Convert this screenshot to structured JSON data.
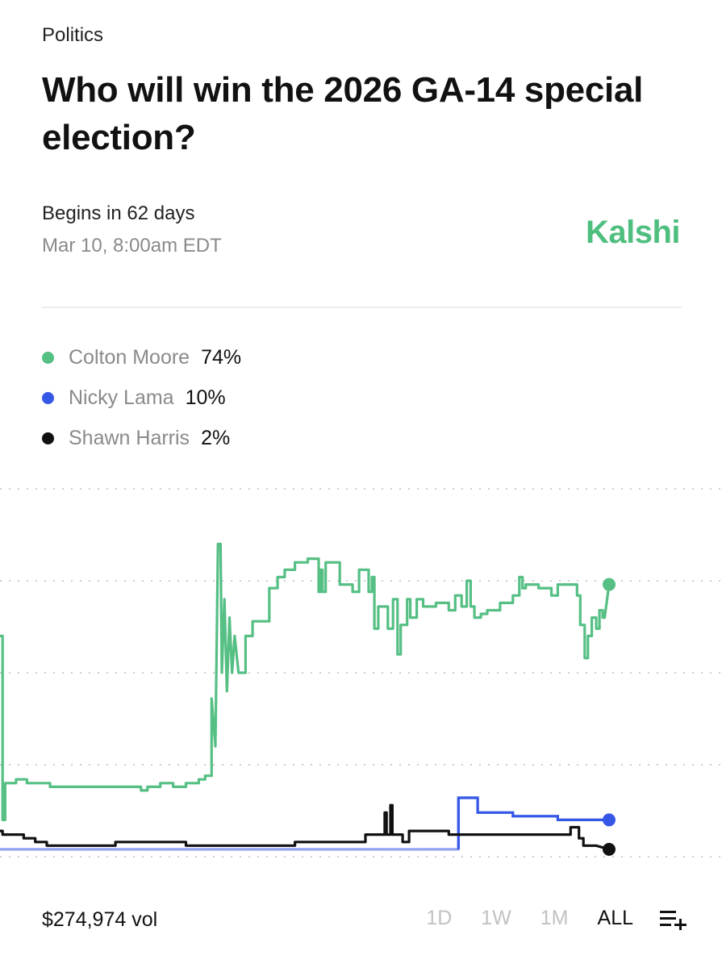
{
  "header": {
    "category": "Politics",
    "title": "Who will win the 2026 GA-14 special election?",
    "begins": "Begins in 62 days",
    "date": "Mar 10, 8:00am EDT",
    "brand": "Kalshi"
  },
  "colors": {
    "brand": "#4fbf7f",
    "moore": "#55bf84",
    "lama": "#3557e6",
    "harris": "#111111",
    "grid": "#cfcfcf"
  },
  "legend": [
    {
      "name": "Colton Moore",
      "value": "74%"
    },
    {
      "name": "Nicky Lama",
      "value": "10%"
    },
    {
      "name": "Shawn Harris",
      "value": "2%"
    }
  ],
  "footer": {
    "volume": "$274,974 vol",
    "ranges": [
      "1D",
      "1W",
      "1M",
      "ALL"
    ],
    "active_range": "ALL",
    "list_icon": "list-add-icon"
  },
  "chart_data": {
    "type": "line",
    "grid": "horizontal-dotted",
    "ylim": [
      0,
      100
    ],
    "xlim": [
      0,
      100
    ],
    "series": [
      {
        "name": "Colton Moore",
        "color": "#55bf84",
        "points": [
          [
            0,
            60
          ],
          [
            0.4,
            60
          ],
          [
            0.4,
            10
          ],
          [
            0.8,
            10
          ],
          [
            0.8,
            20
          ],
          [
            2.5,
            20
          ],
          [
            2.5,
            21
          ],
          [
            4.2,
            21
          ],
          [
            4.2,
            20
          ],
          [
            7.8,
            20
          ],
          [
            7.8,
            19
          ],
          [
            22,
            19
          ],
          [
            22,
            18
          ],
          [
            23,
            18
          ],
          [
            23,
            19
          ],
          [
            25,
            19
          ],
          [
            25,
            20
          ],
          [
            27,
            20
          ],
          [
            27,
            19
          ],
          [
            29,
            19
          ],
          [
            29,
            20
          ],
          [
            31,
            20
          ],
          [
            31,
            21
          ],
          [
            32,
            21
          ],
          [
            32,
            22
          ],
          [
            33,
            22
          ],
          [
            33,
            43
          ],
          [
            33.6,
            30
          ],
          [
            34,
            85
          ],
          [
            34.4,
            85
          ],
          [
            34.6,
            50
          ],
          [
            35,
            70
          ],
          [
            35.4,
            45
          ],
          [
            35.8,
            65
          ],
          [
            36.2,
            50
          ],
          [
            36.6,
            60
          ],
          [
            37.2,
            50
          ],
          [
            38.3,
            50
          ],
          [
            38.3,
            60
          ],
          [
            39.4,
            60
          ],
          [
            39.4,
            64
          ],
          [
            42,
            64
          ],
          [
            42,
            73
          ],
          [
            43.3,
            73
          ],
          [
            43.3,
            76
          ],
          [
            44.4,
            76
          ],
          [
            44.4,
            78
          ],
          [
            46,
            78
          ],
          [
            46,
            80
          ],
          [
            48,
            80
          ],
          [
            48,
            81
          ],
          [
            49.7,
            81
          ],
          [
            49.7,
            72
          ],
          [
            50,
            72
          ],
          [
            50,
            78
          ],
          [
            50.3,
            78
          ],
          [
            50.3,
            72
          ],
          [
            50.8,
            72
          ],
          [
            50.8,
            80
          ],
          [
            53,
            80
          ],
          [
            53,
            74
          ],
          [
            55,
            74
          ],
          [
            55,
            72
          ],
          [
            56,
            72
          ],
          [
            56,
            78
          ],
          [
            57.5,
            78
          ],
          [
            57.5,
            72
          ],
          [
            58,
            72
          ],
          [
            58,
            76
          ],
          [
            58.4,
            76
          ],
          [
            58.4,
            62
          ],
          [
            59,
            62
          ],
          [
            59,
            68
          ],
          [
            60.5,
            68
          ],
          [
            60.5,
            62
          ],
          [
            61.3,
            62
          ],
          [
            61.3,
            70
          ],
          [
            62,
            70
          ],
          [
            62,
            55
          ],
          [
            62.5,
            55
          ],
          [
            62.5,
            63
          ],
          [
            63.5,
            63
          ],
          [
            63.5,
            70
          ],
          [
            64,
            70
          ],
          [
            64,
            65
          ],
          [
            65,
            65
          ],
          [
            65,
            70
          ],
          [
            66,
            70
          ],
          [
            66,
            68
          ],
          [
            68,
            68
          ],
          [
            68,
            69
          ],
          [
            70,
            69
          ],
          [
            70,
            67
          ],
          [
            71,
            67
          ],
          [
            71,
            71
          ],
          [
            72,
            71
          ],
          [
            72,
            68
          ],
          [
            72.8,
            68
          ],
          [
            72.8,
            75
          ],
          [
            73.4,
            75
          ],
          [
            73.4,
            68
          ],
          [
            74,
            68
          ],
          [
            74,
            65
          ],
          [
            75,
            65
          ],
          [
            75,
            66
          ],
          [
            76,
            66
          ],
          [
            76,
            67
          ],
          [
            78,
            67
          ],
          [
            78,
            69
          ],
          [
            80,
            69
          ],
          [
            80,
            71
          ],
          [
            81,
            71
          ],
          [
            81,
            76
          ],
          [
            81.5,
            76
          ],
          [
            81.5,
            73
          ],
          [
            82,
            73
          ],
          [
            82,
            74
          ],
          [
            84,
            74
          ],
          [
            84,
            73
          ],
          [
            86,
            73
          ],
          [
            86,
            71
          ],
          [
            87,
            71
          ],
          [
            87,
            74
          ],
          [
            90,
            74
          ],
          [
            90,
            71
          ],
          [
            90.5,
            71
          ],
          [
            90.5,
            63
          ],
          [
            91.2,
            63
          ],
          [
            91.2,
            54
          ],
          [
            91.7,
            54
          ],
          [
            91.7,
            60
          ],
          [
            92.3,
            60
          ],
          [
            92.3,
            65
          ],
          [
            93,
            65
          ],
          [
            93,
            62
          ],
          [
            93.5,
            62
          ],
          [
            93.5,
            67
          ],
          [
            94,
            67
          ],
          [
            94,
            65
          ],
          [
            94.3,
            65
          ],
          [
            95,
            74
          ]
        ]
      },
      {
        "name": "Nicky Lama",
        "color": "#3557e6",
        "points": [
          [
            0,
            2
          ],
          [
            71.5,
            2
          ],
          [
            71.5,
            16
          ],
          [
            74.5,
            16
          ],
          [
            74.5,
            12
          ],
          [
            80,
            12
          ],
          [
            80,
            11
          ],
          [
            87,
            11
          ],
          [
            87,
            10
          ],
          [
            95,
            10
          ]
        ]
      },
      {
        "name": "Shawn Harris",
        "color": "#111111",
        "points": [
          [
            0,
            7
          ],
          [
            0.4,
            7
          ],
          [
            0.4,
            6
          ],
          [
            3.7,
            6
          ],
          [
            3.7,
            5
          ],
          [
            5.5,
            5
          ],
          [
            5.5,
            4
          ],
          [
            7.3,
            4
          ],
          [
            7.3,
            3
          ],
          [
            18,
            3
          ],
          [
            18,
            4
          ],
          [
            29,
            4
          ],
          [
            29,
            3
          ],
          [
            46,
            3
          ],
          [
            46,
            4
          ],
          [
            57,
            4
          ],
          [
            57,
            6
          ],
          [
            60,
            6
          ],
          [
            60,
            12
          ],
          [
            60.3,
            12
          ],
          [
            60.3,
            6
          ],
          [
            60.9,
            6
          ],
          [
            60.9,
            14
          ],
          [
            61.2,
            14
          ],
          [
            61.2,
            6
          ],
          [
            62.8,
            6
          ],
          [
            62.8,
            4
          ],
          [
            63.8,
            4
          ],
          [
            63.8,
            7
          ],
          [
            70,
            7
          ],
          [
            70,
            6
          ],
          [
            89,
            6
          ],
          [
            89,
            8
          ],
          [
            90.3,
            8
          ],
          [
            90.3,
            5
          ],
          [
            91,
            5
          ],
          [
            91,
            3
          ],
          [
            93,
            3
          ],
          [
            95,
            2
          ]
        ]
      }
    ]
  }
}
